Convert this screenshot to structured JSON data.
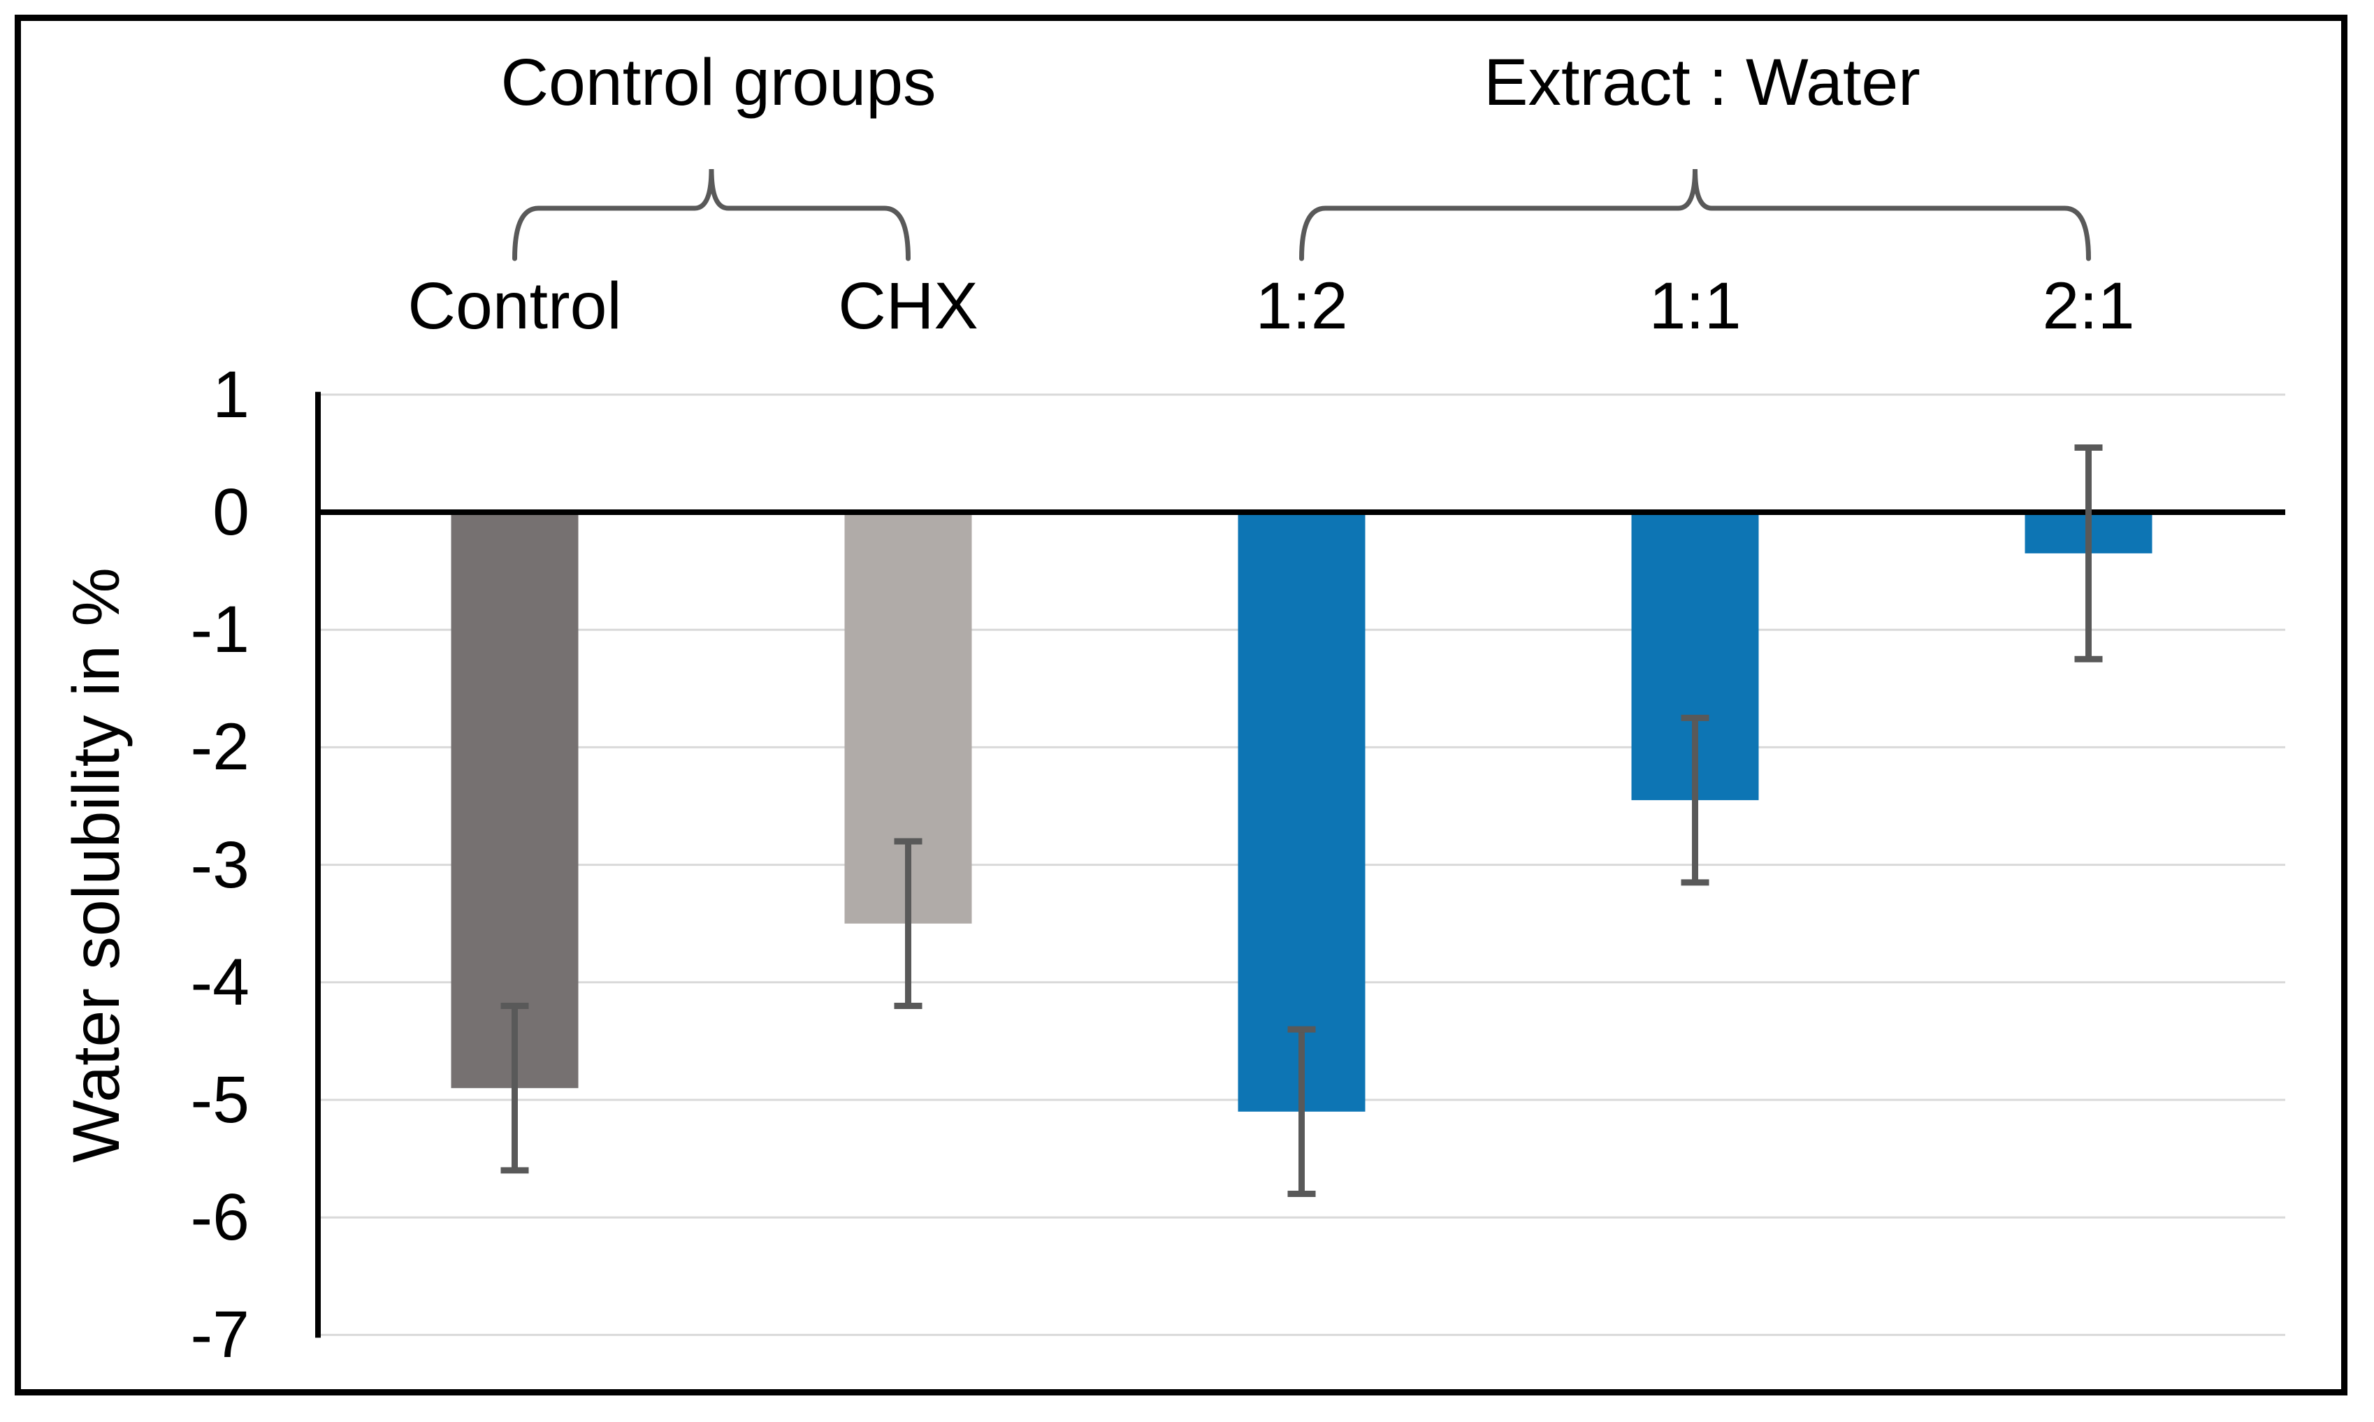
{
  "figure": {
    "background": "#FFFFFF",
    "border_color": "#000000"
  },
  "chart_data": {
    "type": "bar",
    "title": "",
    "ylabel": "Water solubility in %",
    "categories": [
      "Control",
      "CHX",
      "1:2",
      "1:1",
      "2:1"
    ],
    "values": [
      -4.9,
      -3.5,
      -5.1,
      -2.45,
      -0.35
    ],
    "error_bars": [
      0.7,
      0.7,
      0.7,
      0.7,
      0.9
    ],
    "bar_colors": [
      "#767171",
      "#B0ABA8",
      "#0D75B4",
      "#0D75B4",
      "#0D75B4"
    ],
    "error_bar_color": "#595959",
    "gridline_color": "#D9D9D9",
    "axis_color": "#000000",
    "zero_line_color": "#000000",
    "brace_color": "#595959",
    "ylim": [
      -7,
      1
    ],
    "ytick_labels": [
      "1",
      "0",
      "-1",
      "-2",
      "-3",
      "-4",
      "-5",
      "-6",
      "-7"
    ],
    "grid": true,
    "legend": "none",
    "group_titles": [
      {
        "label": "Control groups",
        "span": [
          0,
          1
        ]
      },
      {
        "label": "Extract : Water",
        "span": [
          2,
          4
        ]
      }
    ]
  }
}
